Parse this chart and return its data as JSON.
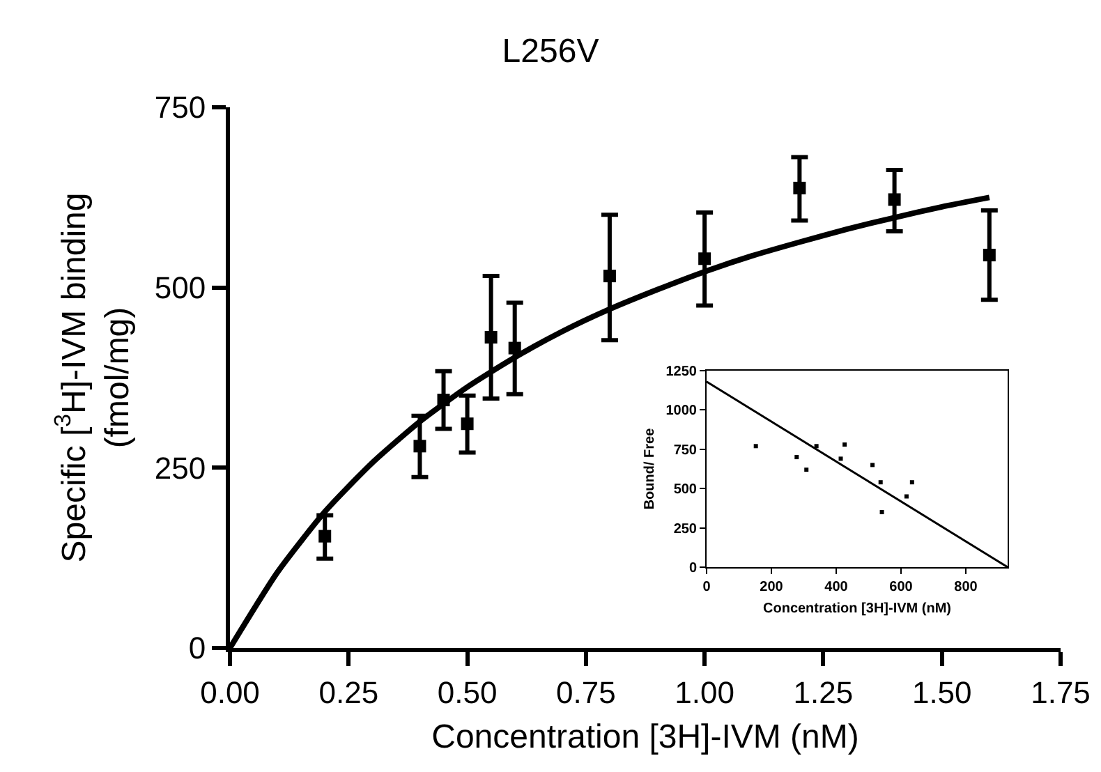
{
  "chart_data": [
    {
      "type": "scatter",
      "title": "L256V",
      "xlabel": "Concentration [3H]-IVM (nM)",
      "ylabel": "Specific [$^{3}$H]-IVM binding\n(fmol/mg)",
      "xlim": [
        0,
        1.75
      ],
      "ylim": [
        0,
        750
      ],
      "xticks": [
        {
          "value": 0,
          "label": "0.00"
        },
        {
          "value": 0.25,
          "label": "0.25"
        },
        {
          "value": 0.5,
          "label": "0.50"
        },
        {
          "value": 0.75,
          "label": "0.75"
        },
        {
          "value": 1,
          "label": "1.00"
        },
        {
          "value": 1.25,
          "label": "1.25"
        },
        {
          "value": 1.5,
          "label": "1.50"
        },
        {
          "value": 1.75,
          "label": "1.75"
        }
      ],
      "yticks": [
        0,
        250,
        500,
        750
      ],
      "series": [
        {
          "type": "scatter",
          "color": "#000000",
          "marker": "square",
          "x": [
            0.2,
            0.4,
            0.45,
            0.5,
            0.55,
            0.6,
            0.8,
            1.0,
            1.2,
            1.4,
            1.6
          ],
          "values": [
            155,
            280,
            344,
            311,
            431,
            416,
            516,
            540,
            638,
            622,
            545
          ],
          "errors": [
            [
              124,
              184
            ],
            [
              237,
              322
            ],
            [
              304,
              384
            ],
            [
              271,
              350
            ],
            [
              346,
              516
            ],
            [
              352,
              479
            ],
            [
              427,
              601
            ],
            [
              475,
              604
            ],
            [
              593,
              681
            ],
            [
              578,
              663
            ],
            [
              483,
              607
            ]
          ]
        },
        {
          "type": "line",
          "color": "#000000",
          "marker": "none",
          "line_style": "solid",
          "x": [
            0,
            0.1,
            0.2,
            0.3,
            0.4,
            0.5,
            0.6,
            0.7,
            0.8,
            0.9,
            1.0,
            1.1,
            1.2,
            1.3,
            1.4,
            1.5,
            1.6
          ],
          "values": [
            0,
            105,
            189,
            257,
            314,
            362,
            403,
            439,
            470,
            497,
            522,
            544,
            563,
            581,
            597,
            612,
            625
          ]
        }
      ]
    },
    {
      "type": "scatter",
      "xlabel": "Concentration [3H]-IVM (nM)",
      "ylabel": "Bound/ Free",
      "xlim": [
        0,
        929
      ],
      "ylim": [
        0,
        1250
      ],
      "xticks": [
        0,
        200,
        400,
        600,
        800
      ],
      "yticks": [
        0,
        250,
        500,
        750,
        1000,
        1250
      ],
      "series": [
        {
          "type": "scatter",
          "color": "#000000",
          "marker": "square",
          "x": [
            152,
            278,
            308,
            339,
            414,
            426,
            512,
            537,
            541,
            617,
            634
          ],
          "values": [
            770,
            700,
            620,
            770,
            690,
            780,
            650,
            540,
            350,
            450,
            540
          ]
        },
        {
          "type": "line",
          "color": "#000000",
          "marker": "none",
          "line_style": "solid",
          "x": [
            0,
            929
          ],
          "values": [
            1180,
            0
          ]
        }
      ]
    }
  ]
}
